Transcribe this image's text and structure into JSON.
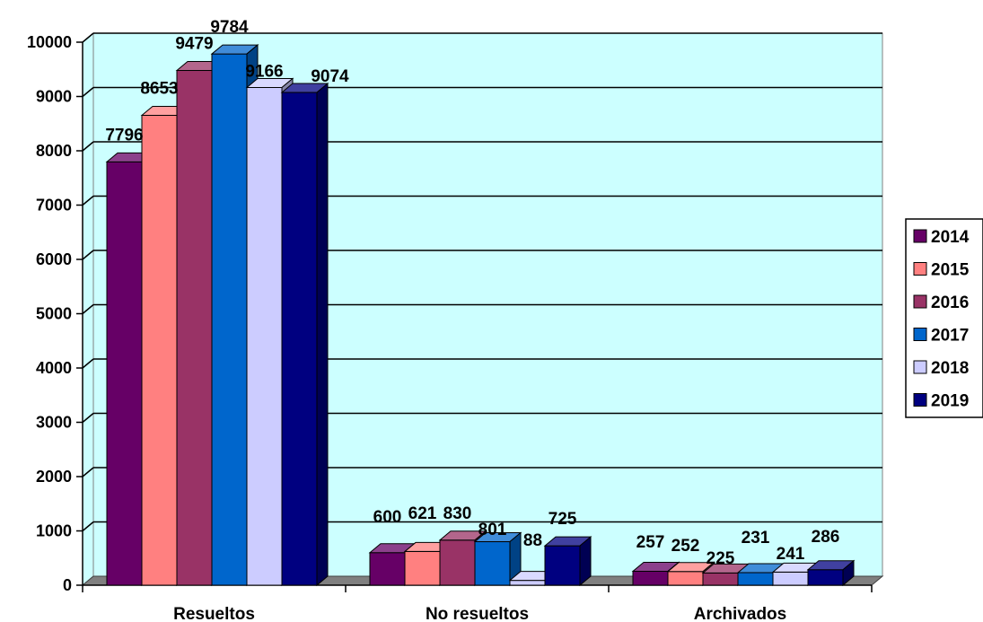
{
  "chart_data": {
    "type": "bar",
    "categories": [
      "Resueltos",
      "No resueltos",
      "Archivados"
    ],
    "series": [
      {
        "name": "2014",
        "values": [
          7796,
          600,
          257
        ],
        "color": "#660066"
      },
      {
        "name": "2015",
        "values": [
          8653,
          621,
          252
        ],
        "color": "#FF8080"
      },
      {
        "name": "2016",
        "values": [
          9479,
          830,
          225
        ],
        "color": "#993366"
      },
      {
        "name": "2017",
        "values": [
          9784,
          801,
          231
        ],
        "color": "#0066CC"
      },
      {
        "name": "2018",
        "values": [
          9166,
          88,
          241
        ],
        "color": "#CCCCFF"
      },
      {
        "name": "2019",
        "values": [
          9074,
          725,
          286
        ],
        "color": "#000080"
      }
    ],
    "yticks": [
      "0",
      "1000",
      "2000",
      "3000",
      "4000",
      "5000",
      "6000",
      "7000",
      "8000",
      "9000",
      "10000"
    ],
    "ylim": [
      0,
      10000
    ],
    "grid": true,
    "legend": "right",
    "wall_color": "#CCFFFF",
    "floor_color": "#808080",
    "style": "3d-clustered-column"
  }
}
